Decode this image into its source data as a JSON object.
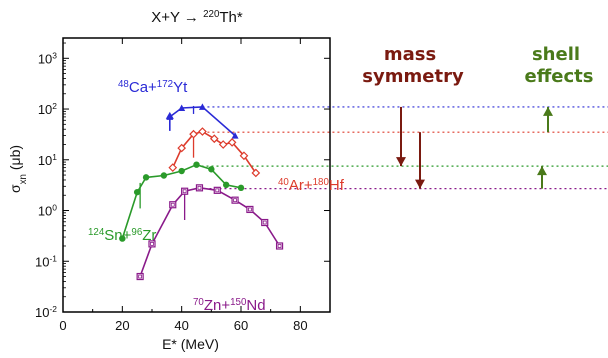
{
  "chart_data": {
    "type": "line",
    "title": "X+Y → 220Th*",
    "title_parts": {
      "pre": "X+Y → ",
      "sup": "220",
      "post": "Th*"
    },
    "xlabel": "E* (MeV)",
    "ylabel_main": "σ",
    "ylabel_sub": "xn",
    "ylabel_unit": " (μb)",
    "xlim": [
      0,
      90
    ],
    "ylim_log10": [
      -2,
      3.4
    ],
    "x_ticks": [
      0,
      20,
      40,
      60,
      80
    ],
    "y_ticks": [
      {
        "exp": -2,
        "label": "10",
        "sup": "-2"
      },
      {
        "exp": -1,
        "label": "10",
        "sup": "-1"
      },
      {
        "exp": 0,
        "label": "10",
        "sup": "0"
      },
      {
        "exp": 1,
        "label": "10",
        "sup": "1"
      },
      {
        "exp": 2,
        "label": "10",
        "sup": "2"
      },
      {
        "exp": 3,
        "label": "10",
        "sup": "3"
      }
    ],
    "grid": false,
    "series": [
      {
        "name": "48Ca+172Yt",
        "label_parts": [
          {
            "sup": "48"
          },
          {
            "t": "Ca+"
          },
          {
            "sup": "172"
          },
          {
            "t": "Yt"
          }
        ],
        "color": "#2a2ad6",
        "marker": "triangle",
        "x": [
          36,
          40,
          47,
          58
        ],
        "y": [
          70,
          105,
          110,
          30
        ],
        "arrow_x": 36,
        "arrow_from": 35,
        "errorbar": {
          "x": 44,
          "lo": 80,
          "hi": 115
        },
        "asymptote": 110
      },
      {
        "name": "40Ar+180Hf",
        "label_parts": [
          {
            "sup": "40"
          },
          {
            "t": "Ar+"
          },
          {
            "sup": "180"
          },
          {
            "t": "Hf"
          }
        ],
        "color": "#dd3b2c",
        "marker": "diamond",
        "x": [
          37,
          40,
          44,
          47,
          51,
          54,
          57,
          61,
          65
        ],
        "y": [
          7,
          17,
          32,
          36,
          26,
          20,
          22,
          12,
          5.5
        ],
        "errorbar": {
          "x": 44,
          "lo": 11,
          "hi": 28
        },
        "asymptote": 35
      },
      {
        "name": "124Sn+96Zr",
        "label_parts": [
          {
            "sup": "124"
          },
          {
            "t": "Sn+"
          },
          {
            "sup": "96"
          },
          {
            "t": "Zr"
          }
        ],
        "color": "#2a9a2a",
        "marker": "circle",
        "x": [
          20,
          25,
          28,
          34,
          40,
          45,
          50,
          55,
          60
        ],
        "y": [
          0.28,
          2.3,
          4.5,
          4.9,
          6,
          8,
          6.5,
          3.2,
          2.8
        ],
        "errorbar": {
          "x": 26,
          "lo": 1.1,
          "hi": 3.5
        },
        "asymptote": 7.5
      },
      {
        "name": "70Zn+150Nd",
        "label_parts": [
          {
            "sup": "70"
          },
          {
            "t": "Zn+"
          },
          {
            "sup": "150"
          },
          {
            "t": "Nd"
          }
        ],
        "color": "#8a1a8a",
        "marker": "square",
        "x": [
          26,
          30,
          37,
          41,
          46,
          52,
          58,
          63,
          68,
          73
        ],
        "y": [
          0.05,
          0.22,
          1.3,
          2.4,
          2.8,
          2.5,
          1.6,
          1.05,
          0.58,
          0.2
        ],
        "errorbar": {
          "x": 41,
          "lo": 0.65,
          "hi": 2.2
        },
        "asymptote": 2.7
      }
    ]
  },
  "annotations": {
    "mass_symmetry": [
      "mass",
      "symmetry"
    ],
    "shell_effects": [
      "shell",
      "effects"
    ],
    "mass_color": "#7a1a10",
    "shell_color": "#4a7a1a"
  }
}
